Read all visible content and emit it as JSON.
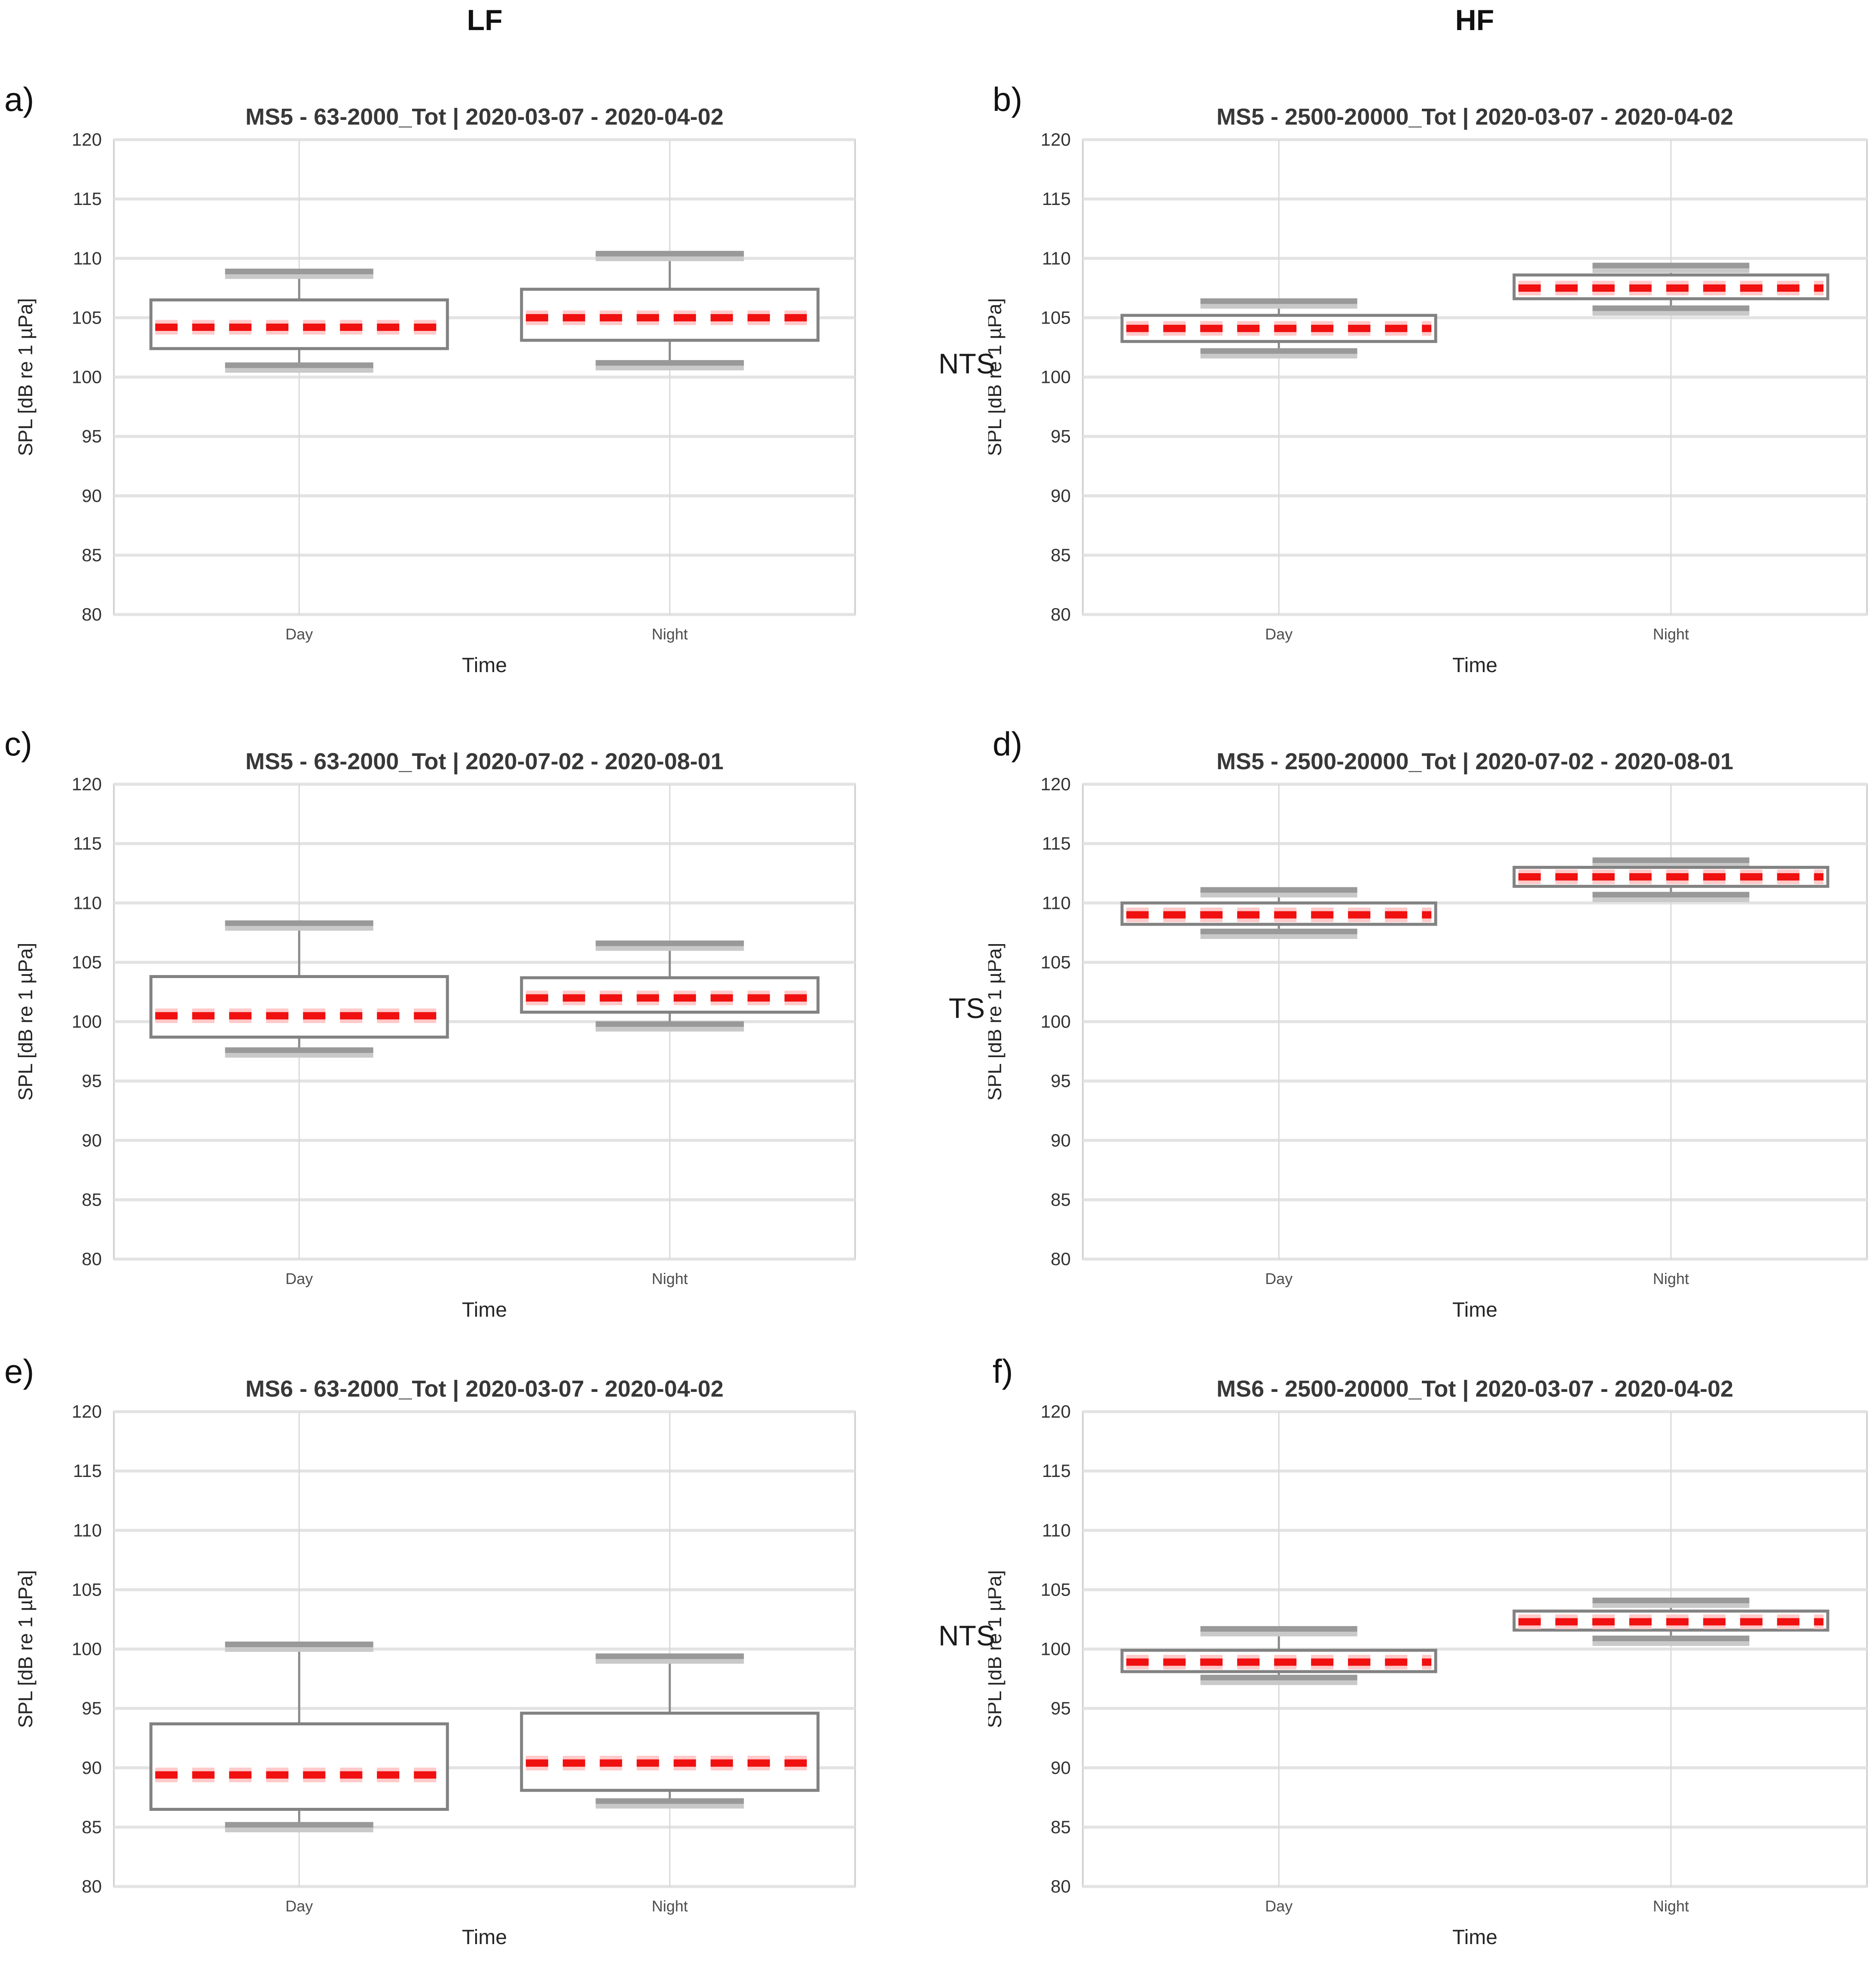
{
  "page": {
    "columns": [
      {
        "label": "LF"
      },
      {
        "label": "HF"
      }
    ],
    "rows": [
      {
        "label": "NTS"
      },
      {
        "label": "TS"
      },
      {
        "label": "NTS"
      }
    ]
  },
  "chart_data": {
    "type": "boxplot-grid",
    "categories": [
      "Day",
      "Night"
    ],
    "xlabel": "Time",
    "ylabel": "SPL [dB re 1 µPa]",
    "y_axis": {
      "min": 80,
      "max": 120,
      "step": 5,
      "ticks": [
        80,
        85,
        90,
        95,
        100,
        105,
        110,
        115,
        120
      ]
    },
    "style": {
      "median_color": "#f01010",
      "median_glow_color": "#ffc9c9",
      "box_color": "#828282",
      "whisker_color": "#8a8a8a",
      "cap_color": "#999999",
      "cap_shadow_color": "#c9c9c9",
      "grid_color": "#e3e3e3",
      "vgrid_color": "#d9d9d9",
      "border_color": "#d2d2d2",
      "tick_text_color": "#333333",
      "category_text_color": "#4d4d4d",
      "axis_label_color": "#262626",
      "title_color": "#383838"
    },
    "panels": [
      {
        "letter": "a)",
        "column": "LF",
        "row_label": "NTS",
        "title": "MS5 - 63-2000_Tot | 2020-03-07 - 2020-04-02",
        "boxes": [
          {
            "category": "Day",
            "whisker_low": 101.0,
            "q1": 102.4,
            "median": 104.2,
            "q3": 106.5,
            "whisker_high": 108.9
          },
          {
            "category": "Night",
            "whisker_low": 101.2,
            "q1": 103.1,
            "median": 105.0,
            "q3": 107.4,
            "whisker_high": 110.4
          }
        ]
      },
      {
        "letter": "b)",
        "column": "HF",
        "row_label": "NTS",
        "title": "MS5 - 2500-20000_Tot | 2020-03-07 - 2020-04-02",
        "boxes": [
          {
            "category": "Day",
            "whisker_low": 102.2,
            "q1": 103.0,
            "median": 104.1,
            "q3": 105.2,
            "whisker_high": 106.4
          },
          {
            "category": "Night",
            "whisker_low": 105.8,
            "q1": 106.6,
            "median": 107.5,
            "q3": 108.6,
            "whisker_high": 109.4
          }
        ]
      },
      {
        "letter": "c)",
        "column": "LF",
        "row_label": "TS",
        "title": "MS5 - 63-2000_Tot | 2020-07-02 - 2020-08-01",
        "boxes": [
          {
            "category": "Day",
            "whisker_low": 97.6,
            "q1": 98.7,
            "median": 100.5,
            "q3": 103.8,
            "whisker_high": 108.3
          },
          {
            "category": "Night",
            "whisker_low": 99.8,
            "q1": 100.8,
            "median": 102.0,
            "q3": 103.7,
            "whisker_high": 106.6
          }
        ]
      },
      {
        "letter": "d)",
        "column": "HF",
        "row_label": "TS",
        "title": "MS5 - 2500-20000_Tot | 2020-07-02 - 2020-08-01",
        "boxes": [
          {
            "category": "Day",
            "whisker_low": 107.6,
            "q1": 108.2,
            "median": 109.0,
            "q3": 110.0,
            "whisker_high": 111.1
          },
          {
            "category": "Night",
            "whisker_low": 110.7,
            "q1": 111.4,
            "median": 112.2,
            "q3": 113.0,
            "whisker_high": 113.6
          }
        ]
      },
      {
        "letter": "e)",
        "column": "LF",
        "row_label": "NTS",
        "title": "MS6 - 63-2000_Tot | 2020-03-07 - 2020-04-02",
        "boxes": [
          {
            "category": "Day",
            "whisker_low": 85.2,
            "q1": 86.5,
            "median": 89.4,
            "q3": 93.7,
            "whisker_high": 100.4
          },
          {
            "category": "Night",
            "whisker_low": 87.2,
            "q1": 88.1,
            "median": 90.4,
            "q3": 94.6,
            "whisker_high": 99.4
          }
        ]
      },
      {
        "letter": "f)",
        "column": "HF",
        "row_label": "NTS",
        "title": "MS6 - 2500-20000_Tot | 2020-03-07 - 2020-04-02",
        "boxes": [
          {
            "category": "Day",
            "whisker_low": 97.6,
            "q1": 98.1,
            "median": 98.9,
            "q3": 99.9,
            "whisker_high": 101.7
          },
          {
            "category": "Night",
            "whisker_low": 100.9,
            "q1": 101.6,
            "median": 102.3,
            "q3": 103.2,
            "whisker_high": 104.1
          }
        ]
      }
    ]
  }
}
